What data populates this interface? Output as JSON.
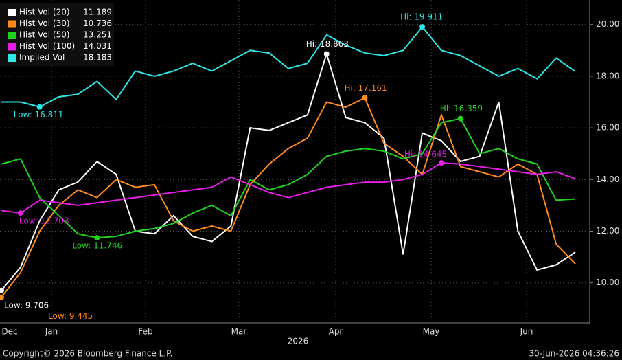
{
  "chart_data": {
    "type": "line",
    "series": [
      {
        "name": "Hist Vol (20)",
        "color": "#ffffff",
        "extremes": [
          "Low: 9.706",
          "Hi: 18.863"
        ],
        "values": [
          9.706,
          10.6,
          12.4,
          13.6,
          13.9,
          14.7,
          14.2,
          12.0,
          11.9,
          12.6,
          11.8,
          11.6,
          12.2,
          16.0,
          15.9,
          16.2,
          16.5,
          18.863,
          16.4,
          16.2,
          15.6,
          11.1,
          15.8,
          15.5,
          14.7,
          14.9,
          17.0,
          12.0,
          10.5,
          10.7,
          11.189
        ]
      },
      {
        "name": "Hist Vol (30)",
        "color": "#ff8a1e",
        "extremes": [
          "Low: 9.445",
          "Hi: 17.161"
        ],
        "values": [
          9.445,
          10.4,
          12.0,
          13.0,
          13.6,
          13.3,
          14.0,
          13.7,
          13.8,
          12.4,
          12.0,
          12.2,
          12.0,
          13.8,
          14.6,
          15.2,
          15.6,
          17.0,
          16.8,
          17.161,
          15.4,
          14.9,
          14.2,
          16.5,
          14.5,
          14.3,
          14.1,
          14.6,
          14.2,
          11.5,
          10.736
        ]
      },
      {
        "name": "Hist Vol (50)",
        "color": "#21d321",
        "extremes": [
          "Low: 11.746",
          "Hi: 16.359"
        ],
        "values": [
          14.6,
          14.8,
          13.3,
          12.6,
          11.9,
          11.746,
          11.8,
          12.0,
          12.1,
          12.3,
          12.7,
          13.0,
          12.6,
          14.0,
          13.6,
          13.8,
          14.2,
          14.9,
          15.1,
          15.2,
          15.1,
          14.8,
          15.0,
          16.2,
          16.359,
          15.0,
          15.2,
          14.8,
          14.6,
          13.2,
          13.251
        ]
      },
      {
        "name": "Hist Vol (100)",
        "color": "#e61ee6",
        "extremes": [
          "Low: 12.703",
          "Hi: 14.645"
        ],
        "values": [
          12.8,
          12.703,
          13.2,
          13.1,
          13.0,
          13.1,
          13.2,
          13.3,
          13.4,
          13.5,
          13.6,
          13.7,
          14.1,
          13.8,
          13.5,
          13.3,
          13.5,
          13.7,
          13.8,
          13.9,
          13.9,
          14.0,
          14.2,
          14.645,
          14.6,
          14.5,
          14.4,
          14.3,
          14.2,
          14.3,
          14.031
        ]
      },
      {
        "name": "Implied Vol",
        "color": "#2ee6e6",
        "extremes": [
          "Low: 16.811",
          "Hi: 19.911"
        ],
        "values": [
          17.0,
          17.0,
          16.811,
          17.2,
          17.3,
          17.8,
          17.1,
          18.2,
          18.0,
          18.2,
          18.5,
          18.2,
          18.6,
          19.0,
          18.9,
          18.3,
          18.5,
          19.6,
          19.2,
          18.9,
          18.8,
          19.0,
          19.911,
          19.0,
          18.8,
          18.4,
          18.0,
          18.3,
          17.9,
          18.7,
          18.183
        ]
      }
    ],
    "xlabels": [
      "Dec",
      "Jan",
      "Feb",
      "Mar",
      "Apr",
      "May",
      "Jun"
    ],
    "xyear": "2026",
    "ylim": [
      8.45,
      20.95
    ],
    "yticks": [
      {
        "value": 10,
        "label": "10.00"
      },
      {
        "value": 12,
        "label": "12.00"
      },
      {
        "value": 14,
        "label": "14.00"
      },
      {
        "value": 16,
        "label": "16.00"
      },
      {
        "value": 18,
        "label": "18.00"
      },
      {
        "value": 20,
        "label": "20.00"
      }
    ],
    "grid": true,
    "legend": "top-left",
    "copyright": "Copyright© 2026 Bloomberg Finance L.P.",
    "timestamp": "30-Jun-2026 04:36:26"
  }
}
